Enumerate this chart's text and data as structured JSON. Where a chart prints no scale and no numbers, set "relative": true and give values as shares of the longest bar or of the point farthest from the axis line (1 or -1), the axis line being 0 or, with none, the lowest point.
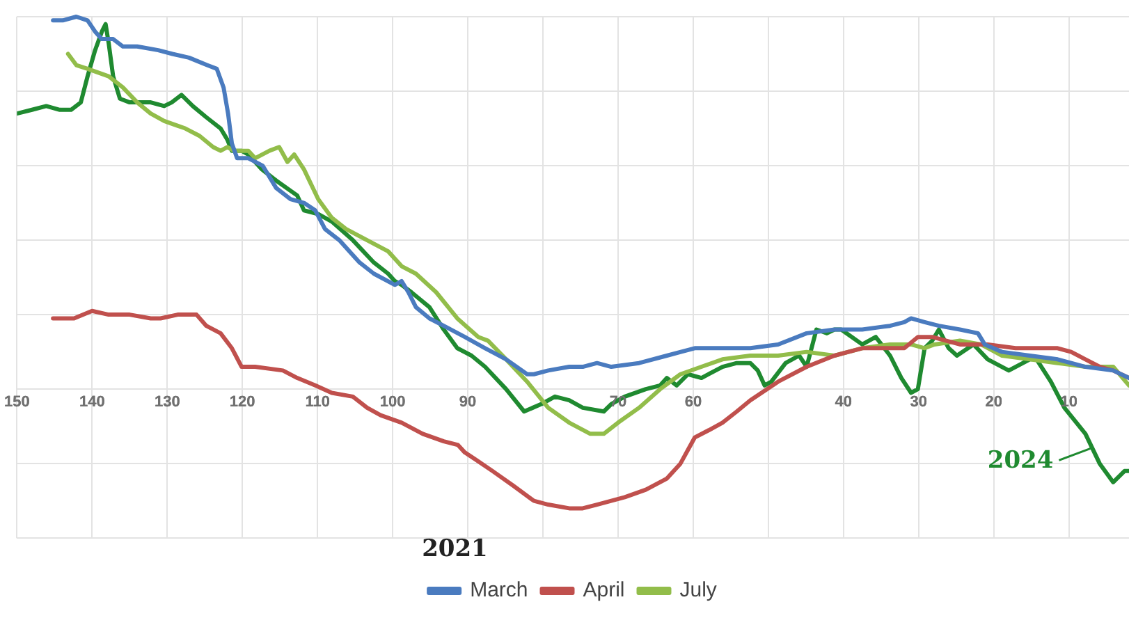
{
  "chart_data": {
    "type": "line",
    "relative": true,
    "xlim": [
      150,
      2
    ],
    "xticks": [
      150,
      140,
      130,
      120,
      110,
      100,
      90,
      {
        "value": 80,
        "label": null
      },
      70,
      60,
      {
        "value": 50,
        "label": null
      },
      40,
      30,
      20,
      10
    ],
    "grid": true,
    "legend": "bottom",
    "legend_title": "2021",
    "marker": "none",
    "line_style": "solid",
    "annotations": [
      {
        "text": "2024",
        "x": 6.5,
        "y": -0.15
      }
    ],
    "series": [
      {
        "name": "March",
        "color": "#4a7bbf",
        "x": [
          145.2,
          143.9,
          142.1,
          140.6,
          139.6,
          138.7,
          137.2,
          135.9,
          134.0,
          131.2,
          129.3,
          127.1,
          124.7,
          123.4,
          122.5,
          121.9,
          121.4,
          120.7,
          119.2,
          117.3,
          115.5,
          113.6,
          111.8,
          110.3,
          109.0,
          107.1,
          104.4,
          102.5,
          99.7,
          98.8,
          97.9,
          96.9,
          95.1,
          93.2,
          90.4,
          87.7,
          84.9,
          82.1,
          81.2,
          79.3,
          76.5,
          74.7,
          72.8,
          70.9,
          67.2,
          63.5,
          59.8,
          56.1,
          52.4,
          48.7,
          44.9,
          41.2,
          37.5,
          33.8,
          31.9,
          31.0,
          29.2,
          27.3,
          24.5,
          22.1,
          21.2,
          18.9,
          15.2,
          11.5,
          7.8,
          4.1,
          2.0
        ],
        "values": [
          0.99,
          0.99,
          1.0,
          0.99,
          0.96,
          0.94,
          0.94,
          0.92,
          0.92,
          0.91,
          0.9,
          0.89,
          0.87,
          0.86,
          0.81,
          0.74,
          0.66,
          0.62,
          0.62,
          0.6,
          0.54,
          0.51,
          0.5,
          0.48,
          0.43,
          0.4,
          0.34,
          0.31,
          0.28,
          0.29,
          0.26,
          0.22,
          0.19,
          0.17,
          0.14,
          0.11,
          0.08,
          0.04,
          0.04,
          0.05,
          0.06,
          0.06,
          0.07,
          0.06,
          0.07,
          0.09,
          0.11,
          0.11,
          0.11,
          0.12,
          0.15,
          0.16,
          0.16,
          0.17,
          0.18,
          0.19,
          0.18,
          0.17,
          0.16,
          0.15,
          0.12,
          0.1,
          0.09,
          0.08,
          0.06,
          0.05,
          0.03
        ]
      },
      {
        "name": "April",
        "color": "#c0504d",
        "x": [
          145.2,
          142.4,
          140.0,
          137.8,
          135.0,
          132.2,
          130.9,
          128.6,
          126.1,
          124.8,
          122.9,
          121.4,
          120.1,
          118.3,
          114.6,
          112.7,
          110.3,
          108.1,
          105.3,
          103.4,
          101.6,
          98.8,
          96.0,
          93.2,
          91.3,
          90.4,
          88.9,
          86.7,
          83.9,
          81.2,
          79.3,
          76.5,
          74.7,
          72.8,
          69.1,
          66.3,
          63.5,
          61.7,
          59.8,
          57.9,
          56.1,
          54.2,
          52.4,
          48.7,
          44.9,
          41.2,
          37.5,
          33.8,
          31.9,
          30.1,
          28.2,
          24.5,
          20.8,
          17.1,
          14.3,
          11.5,
          9.7,
          7.8,
          5.9,
          4.1,
          2.0
        ],
        "values": [
          0.19,
          0.19,
          0.21,
          0.2,
          0.2,
          0.19,
          0.19,
          0.2,
          0.2,
          0.17,
          0.15,
          0.11,
          0.06,
          0.06,
          0.05,
          0.03,
          0.01,
          -0.01,
          -0.02,
          -0.05,
          -0.07,
          -0.09,
          -0.12,
          -0.14,
          -0.15,
          -0.17,
          -0.19,
          -0.22,
          -0.26,
          -0.3,
          -0.31,
          -0.32,
          -0.32,
          -0.31,
          -0.29,
          -0.27,
          -0.24,
          -0.2,
          -0.13,
          -0.11,
          -0.09,
          -0.06,
          -0.03,
          0.02,
          0.06,
          0.09,
          0.11,
          0.11,
          0.11,
          0.14,
          0.14,
          0.12,
          0.12,
          0.11,
          0.11,
          0.11,
          0.1,
          0.08,
          0.06,
          0.05,
          0.03
        ]
      },
      {
        "name": "July",
        "color": "#92bd4a",
        "x": [
          143.2,
          142.1,
          140.6,
          137.8,
          135.9,
          134.0,
          132.2,
          130.4,
          127.6,
          125.7,
          123.9,
          122.9,
          122.0,
          121.1,
          119.2,
          118.3,
          116.4,
          115.1,
          114.0,
          113.1,
          111.8,
          109.9,
          108.1,
          106.2,
          103.4,
          100.6,
          98.8,
          96.9,
          94.2,
          91.4,
          88.6,
          87.3,
          84.9,
          82.1,
          79.3,
          76.5,
          73.7,
          71.9,
          70.0,
          67.2,
          64.4,
          61.7,
          58.9,
          56.1,
          52.4,
          48.7,
          44.9,
          41.2,
          37.5,
          33.8,
          31.0,
          29.2,
          27.9,
          24.5,
          21.7,
          18.9,
          15.2,
          11.5,
          7.8,
          4.1,
          2.0
        ],
        "values": [
          0.9,
          0.87,
          0.86,
          0.84,
          0.81,
          0.77,
          0.74,
          0.72,
          0.7,
          0.68,
          0.65,
          0.64,
          0.65,
          0.64,
          0.64,
          0.62,
          0.64,
          0.65,
          0.61,
          0.63,
          0.59,
          0.51,
          0.46,
          0.43,
          0.4,
          0.37,
          0.33,
          0.31,
          0.26,
          0.19,
          0.14,
          0.13,
          0.08,
          0.02,
          -0.05,
          -0.09,
          -0.12,
          -0.12,
          -0.09,
          -0.05,
          0.0,
          0.04,
          0.06,
          0.08,
          0.09,
          0.09,
          0.1,
          0.09,
          0.11,
          0.12,
          0.12,
          0.11,
          0.12,
          0.13,
          0.12,
          0.09,
          0.08,
          0.07,
          0.06,
          0.06,
          0.01
        ]
      },
      {
        "color": "#1f8a30",
        "x": [
          150.0,
          148.0,
          146.1,
          144.3,
          142.8,
          141.5,
          140.6,
          139.6,
          138.7,
          138.2,
          137.8,
          137.2,
          136.3,
          135.0,
          132.2,
          130.4,
          129.4,
          128.1,
          126.6,
          124.8,
          122.9,
          122.0,
          121.4,
          120.1,
          119.2,
          117.4,
          115.5,
          112.7,
          111.8,
          109.9,
          108.1,
          105.3,
          102.5,
          100.6,
          99.7,
          98.8,
          97.5,
          95.1,
          93.2,
          91.4,
          89.5,
          87.7,
          84.9,
          82.5,
          80.2,
          78.4,
          76.5,
          74.7,
          71.9,
          70.9,
          69.1,
          66.3,
          64.4,
          63.5,
          62.2,
          60.7,
          58.9,
          56.1,
          54.2,
          52.4,
          51.4,
          50.5,
          49.6,
          47.7,
          45.9,
          44.9,
          43.6,
          42.2,
          41.2,
          40.3,
          37.5,
          35.7,
          33.8,
          32.3,
          31.0,
          30.1,
          29.2,
          28.2,
          27.3,
          26.0,
          24.9,
          22.7,
          20.8,
          18.0,
          15.2,
          14.3,
          12.4,
          10.6,
          7.8,
          5.9,
          4.1,
          2.6,
          2.0
        ],
        "values": [
          0.74,
          0.75,
          0.76,
          0.75,
          0.75,
          0.77,
          0.84,
          0.91,
          0.96,
          0.98,
          0.93,
          0.84,
          0.78,
          0.77,
          0.77,
          0.76,
          0.77,
          0.79,
          0.76,
          0.73,
          0.7,
          0.67,
          0.64,
          0.64,
          0.63,
          0.59,
          0.56,
          0.52,
          0.48,
          0.47,
          0.45,
          0.4,
          0.34,
          0.31,
          0.29,
          0.28,
          0.26,
          0.22,
          0.16,
          0.11,
          0.09,
          0.06,
          0.0,
          -0.06,
          -0.04,
          -0.02,
          -0.03,
          -0.05,
          -0.06,
          -0.04,
          -0.02,
          0.0,
          0.01,
          0.03,
          0.01,
          0.04,
          0.03,
          0.06,
          0.07,
          0.07,
          0.05,
          0.01,
          0.02,
          0.07,
          0.09,
          0.06,
          0.16,
          0.15,
          0.16,
          0.16,
          0.12,
          0.14,
          0.09,
          0.03,
          -0.01,
          0.0,
          0.11,
          0.13,
          0.16,
          0.11,
          0.09,
          0.12,
          0.08,
          0.05,
          0.08,
          0.08,
          0.02,
          -0.05,
          -0.12,
          -0.2,
          -0.25,
          -0.22,
          -0.22
        ]
      }
    ]
  }
}
